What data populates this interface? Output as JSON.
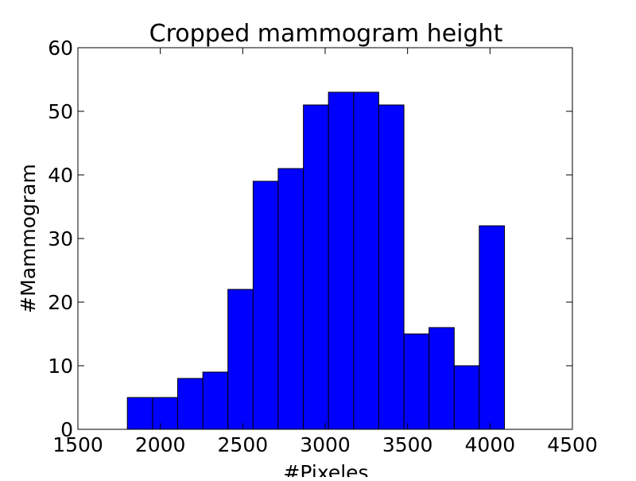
{
  "chart_data": {
    "type": "bar",
    "title": "Cropped mammogram height",
    "xlabel": "#Pixeles",
    "ylabel": "#Mammogram",
    "xlim": [
      1500,
      4500
    ],
    "ylim": [
      0,
      60
    ],
    "x_ticks": [
      1500,
      2000,
      2500,
      3000,
      3500,
      4000,
      4500
    ],
    "y_ticks": [
      0,
      10,
      20,
      30,
      40,
      50,
      60
    ],
    "grid": false,
    "bar_color": "#0000ff",
    "edge_color": "#000000",
    "bins": [
      {
        "start": 1800,
        "end": 1953,
        "value": 5
      },
      {
        "start": 1953,
        "end": 2105,
        "value": 5
      },
      {
        "start": 2105,
        "end": 2258,
        "value": 8
      },
      {
        "start": 2258,
        "end": 2410,
        "value": 9
      },
      {
        "start": 2410,
        "end": 2563,
        "value": 22
      },
      {
        "start": 2563,
        "end": 2715,
        "value": 39
      },
      {
        "start": 2715,
        "end": 2868,
        "value": 41
      },
      {
        "start": 2868,
        "end": 3020,
        "value": 51
      },
      {
        "start": 3020,
        "end": 3173,
        "value": 53
      },
      {
        "start": 3173,
        "end": 3325,
        "value": 53
      },
      {
        "start": 3325,
        "end": 3478,
        "value": 51
      },
      {
        "start": 3478,
        "end": 3630,
        "value": 15
      },
      {
        "start": 3630,
        "end": 3783,
        "value": 16
      },
      {
        "start": 3783,
        "end": 3935,
        "value": 10
      },
      {
        "start": 3935,
        "end": 4088,
        "value": 32
      }
    ]
  }
}
